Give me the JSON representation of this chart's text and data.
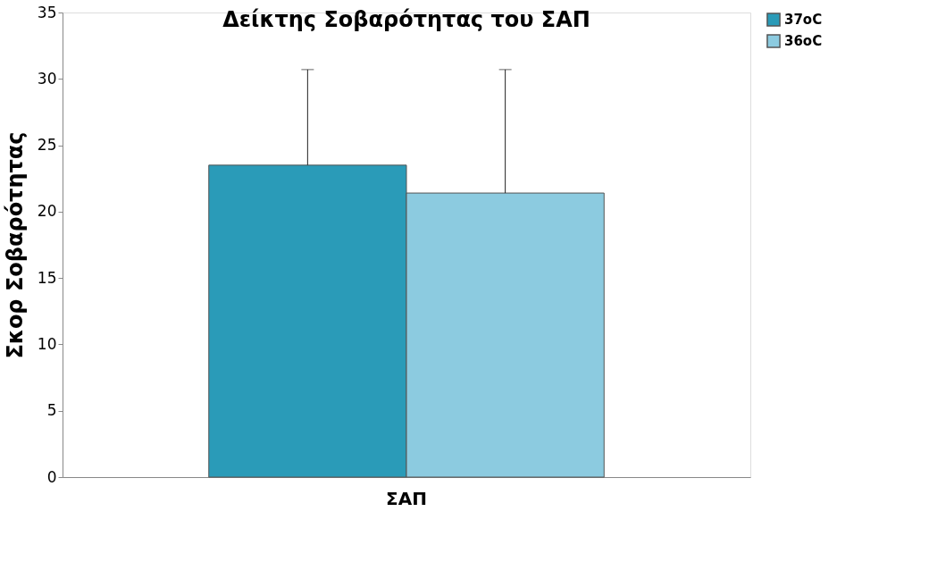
{
  "chart_data": {
    "type": "bar",
    "title": "Δείκτης Σοβαρότητας του ΣΑΠ",
    "ylabel": "Σκορ Σοβαρότητας",
    "categories": [
      "ΣΑΠ"
    ],
    "series": [
      {
        "name": "37oC",
        "color": "#2a9bb8",
        "values": [
          23.5
        ],
        "errors": [
          [
            23.5,
            30.7
          ]
        ]
      },
      {
        "name": "36oC",
        "color": "#8ccbe0",
        "values": [
          21.4
        ],
        "errors": [
          [
            21.4,
            30.7
          ]
        ]
      }
    ],
    "ylim": [
      0,
      35
    ],
    "yticks": [
      0,
      5,
      10,
      15,
      20,
      25,
      30,
      35
    ],
    "grid": false,
    "legend": "right"
  }
}
